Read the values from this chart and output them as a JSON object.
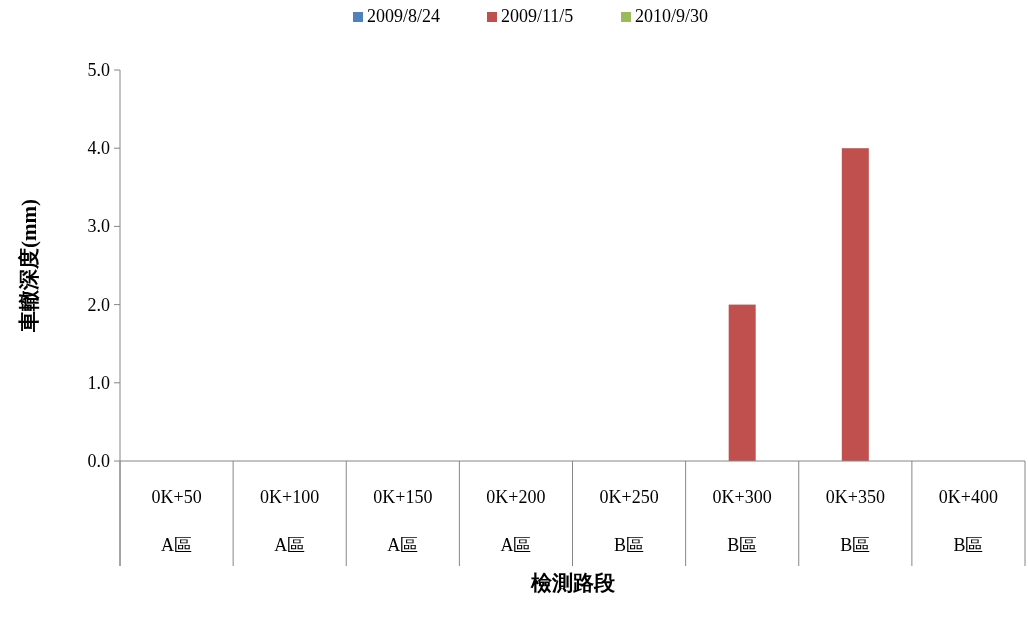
{
  "chart_data": {
    "type": "bar",
    "xlabel": "檢測路段",
    "ylabel": "車轍深度(mm)",
    "categories": [
      "0K+50\nA區",
      "0K+100\nA區",
      "0K+150\nA區",
      "0K+200\nA區",
      "0K+250\nB區",
      "0K+300\nB區",
      "0K+350\nB區",
      "0K+400\nB區"
    ],
    "series": [
      {
        "name": "2009/8/24",
        "color": "#4f81bd",
        "values": [
          0,
          0,
          0,
          0,
          0,
          0,
          0,
          0
        ]
      },
      {
        "name": "2009/11/5",
        "color": "#c0504d",
        "values": [
          0,
          0,
          0,
          0,
          0,
          2,
          4,
          0
        ]
      },
      {
        "name": "2010/9/30",
        "color": "#9bbb59",
        "values": [
          0,
          0,
          0,
          0,
          0,
          0,
          0,
          0
        ]
      }
    ],
    "ylim": [
      0,
      5
    ],
    "yticks": [
      {
        "value": 0,
        "label": "0.0"
      },
      {
        "value": 1,
        "label": "1.0"
      },
      {
        "value": 2,
        "label": "2.0"
      },
      {
        "value": 3,
        "label": "3.0"
      },
      {
        "value": 4,
        "label": "4.0"
      },
      {
        "value": 5,
        "label": "5.0"
      }
    ],
    "grid": false,
    "legend": "top"
  }
}
